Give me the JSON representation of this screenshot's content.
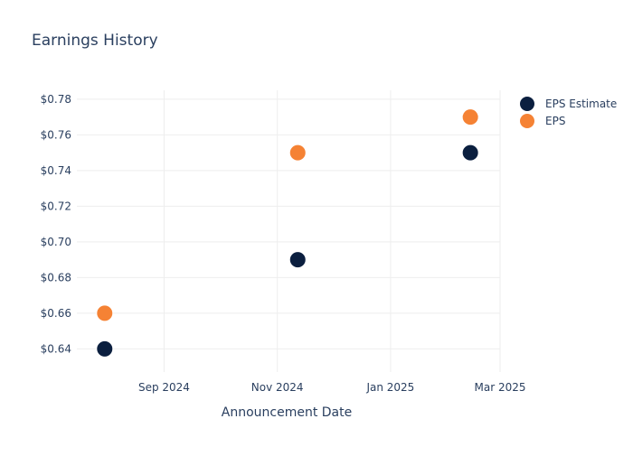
{
  "chart_data": {
    "type": "scatter",
    "title": "Earnings History",
    "xlabel": "Announcement Date",
    "ylabel": "",
    "x_type": "date",
    "xlim": [
      "2024-07-16",
      "2025-03-01"
    ],
    "ylim": [
      0.627,
      0.785
    ],
    "x_ticks": [
      {
        "value": "2024-09-01",
        "label": "Sep 2024"
      },
      {
        "value": "2024-11-01",
        "label": "Nov 2024"
      },
      {
        "value": "2025-01-01",
        "label": "Jan 2025"
      },
      {
        "value": "2025-03-01",
        "label": "Mar 2025"
      }
    ],
    "y_ticks": [
      {
        "value": 0.64,
        "label": "$0.64"
      },
      {
        "value": 0.66,
        "label": "$0.66"
      },
      {
        "value": 0.68,
        "label": "$0.68"
      },
      {
        "value": 0.7,
        "label": "$0.70"
      },
      {
        "value": 0.72,
        "label": "$0.72"
      },
      {
        "value": 0.74,
        "label": "$0.74"
      },
      {
        "value": 0.76,
        "label": "$0.76"
      },
      {
        "value": 0.78,
        "label": "$0.78"
      }
    ],
    "grid": true,
    "legend_position": "top-right",
    "series": [
      {
        "name": "EPS Estimate",
        "color": "#0b1f3f",
        "points": [
          {
            "x": "2024-07-31",
            "y": 0.64
          },
          {
            "x": "2024-11-12",
            "y": 0.69
          },
          {
            "x": "2025-02-13",
            "y": 0.75
          }
        ]
      },
      {
        "name": "EPS",
        "color": "#f58234",
        "points": [
          {
            "x": "2024-07-31",
            "y": 0.66
          },
          {
            "x": "2024-11-12",
            "y": 0.75
          },
          {
            "x": "2025-02-13",
            "y": 0.77
          }
        ]
      }
    ]
  }
}
